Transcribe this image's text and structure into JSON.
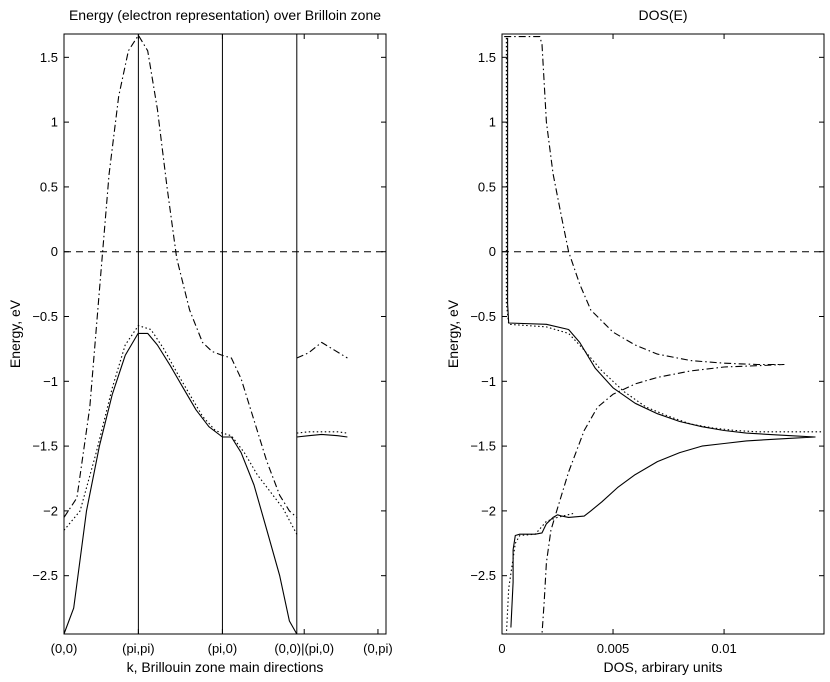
{
  "chart_data": [
    {
      "type": "line",
      "title": "Energy (electron representation) over Brilloin zone",
      "xlabel": "k, Brillouin zone main directions",
      "ylabel": "Energy, eV",
      "xlim": [
        0,
        1
      ],
      "ylim": [
        -2.95,
        1.68
      ],
      "yticks": [
        1.5,
        1,
        0.5,
        0,
        -0.5,
        -1,
        -1.5,
        -2,
        -2.5
      ],
      "ytick_labels": [
        "1.5",
        "1",
        "0.5",
        "0",
        "−0.5",
        "−1",
        "−1.5",
        "−2",
        "−2.5"
      ],
      "xticks": [
        0,
        0.231,
        0.492,
        0.746,
        0.975
      ],
      "xtick_labels": [
        "(0,0)",
        "(pi,pi)",
        "(pi,0)",
        "(0,0)|(pi,0)",
        "(0,pi)"
      ],
      "vlines": [
        0.231,
        0.492,
        0.723
      ],
      "hline": {
        "y": 0,
        "style": "dashed"
      },
      "series": [
        {
          "name": "band-solid",
          "style": "solid",
          "segments": [
            [
              [
                0,
                -2.95
              ],
              [
                0.03,
                -2.75
              ],
              [
                0.07,
                -2.0
              ],
              [
                0.11,
                -1.5
              ],
              [
                0.15,
                -1.1
              ],
              [
                0.19,
                -0.8
              ],
              [
                0.23,
                -0.63
              ],
              [
                0.26,
                -0.63
              ],
              [
                0.29,
                -0.72
              ],
              [
                0.33,
                -0.88
              ],
              [
                0.37,
                -1.05
              ],
              [
                0.41,
                -1.22
              ],
              [
                0.45,
                -1.35
              ],
              [
                0.492,
                -1.43
              ],
              [
                0.52,
                -1.43
              ],
              [
                0.55,
                -1.55
              ],
              [
                0.59,
                -1.8
              ],
              [
                0.63,
                -2.15
              ],
              [
                0.67,
                -2.5
              ],
              [
                0.7,
                -2.85
              ],
              [
                0.723,
                -2.95
              ]
            ],
            [
              [
                0.723,
                -1.43
              ],
              [
                0.76,
                -1.42
              ],
              [
                0.8,
                -1.41
              ],
              [
                0.85,
                -1.42
              ],
              [
                0.88,
                -1.43
              ]
            ]
          ]
        },
        {
          "name": "band-dotted",
          "style": "dotted",
          "segments": [
            [
              [
                0,
                -2.15
              ],
              [
                0.05,
                -2.0
              ],
              [
                0.1,
                -1.55
              ],
              [
                0.15,
                -1.05
              ],
              [
                0.19,
                -0.72
              ],
              [
                0.231,
                -0.57
              ],
              [
                0.27,
                -0.6
              ],
              [
                0.31,
                -0.75
              ],
              [
                0.35,
                -0.93
              ],
              [
                0.39,
                -1.1
              ],
              [
                0.43,
                -1.27
              ],
              [
                0.47,
                -1.38
              ],
              [
                0.492,
                -1.4
              ],
              [
                0.52,
                -1.42
              ],
              [
                0.56,
                -1.55
              ],
              [
                0.6,
                -1.72
              ],
              [
                0.64,
                -1.85
              ],
              [
                0.68,
                -1.98
              ],
              [
                0.71,
                -2.12
              ],
              [
                0.723,
                -2.18
              ]
            ],
            [
              [
                0.723,
                -1.4
              ],
              [
                0.76,
                -1.39
              ],
              [
                0.8,
                -1.39
              ],
              [
                0.85,
                -1.39
              ],
              [
                0.88,
                -1.4
              ]
            ]
          ]
        },
        {
          "name": "band-dashdot",
          "style": "dashdot",
          "segments": [
            [
              [
                0,
                -2.05
              ],
              [
                0.04,
                -1.9
              ],
              [
                0.08,
                -1.2
              ],
              [
                0.11,
                -0.3
              ],
              [
                0.14,
                0.6
              ],
              [
                0.17,
                1.2
              ],
              [
                0.2,
                1.55
              ],
              [
                0.231,
                1.67
              ],
              [
                0.26,
                1.55
              ],
              [
                0.29,
                1.1
              ],
              [
                0.32,
                0.5
              ],
              [
                0.35,
                -0.05
              ],
              [
                0.39,
                -0.45
              ],
              [
                0.43,
                -0.7
              ],
              [
                0.46,
                -0.77
              ],
              [
                0.492,
                -0.8
              ],
              [
                0.52,
                -0.82
              ],
              [
                0.55,
                -0.98
              ],
              [
                0.59,
                -1.3
              ],
              [
                0.63,
                -1.62
              ],
              [
                0.67,
                -1.88
              ],
              [
                0.7,
                -2.0
              ],
              [
                0.723,
                -2.05
              ]
            ],
            [
              [
                0.723,
                -0.82
              ],
              [
                0.76,
                -0.78
              ],
              [
                0.8,
                -0.7
              ],
              [
                0.84,
                -0.76
              ],
              [
                0.88,
                -0.82
              ]
            ]
          ]
        }
      ]
    },
    {
      "type": "line",
      "title": "DOS(E)",
      "xlabel": "DOS, arbirary units",
      "ylabel": "Energy, eV",
      "xlim": [
        0,
        0.0145
      ],
      "ylim": [
        -2.95,
        1.68
      ],
      "yticks": [
        1.5,
        1,
        0.5,
        0,
        -0.5,
        -1,
        -1.5,
        -2,
        -2.5
      ],
      "ytick_labels": [
        "1.5",
        "1",
        "0.5",
        "0",
        "−0.5",
        "−1",
        "−1.5",
        "−2",
        "−2.5"
      ],
      "xticks": [
        0,
        0.005,
        0.01
      ],
      "xtick_labels": [
        "0",
        "0.005",
        "0.01"
      ],
      "hline": {
        "y": 0,
        "style": "dashed"
      },
      "series": [
        {
          "name": "dos-solid",
          "style": "solid",
          "segments": [
            [
              [
                0.00025,
                1.65
              ],
              [
                0.00025,
                -0.4
              ],
              [
                0.0003,
                -0.55
              ],
              [
                0.002,
                -0.56
              ],
              [
                0.003,
                -0.6
              ],
              [
                0.0035,
                -0.7
              ],
              [
                0.0042,
                -0.9
              ],
              [
                0.005,
                -1.05
              ],
              [
                0.006,
                -1.17
              ],
              [
                0.007,
                -1.25
              ],
              [
                0.008,
                -1.31
              ],
              [
                0.009,
                -1.35
              ],
              [
                0.01,
                -1.38
              ],
              [
                0.011,
                -1.4
              ],
              [
                0.012,
                -1.41
              ],
              [
                0.013,
                -1.42
              ],
              [
                0.0141,
                -1.43
              ],
              [
                0.013,
                -1.44
              ],
              [
                0.012,
                -1.45
              ],
              [
                0.011,
                -1.46
              ],
              [
                0.01,
                -1.48
              ],
              [
                0.009,
                -1.5
              ],
              [
                0.008,
                -1.55
              ],
              [
                0.007,
                -1.62
              ],
              [
                0.006,
                -1.72
              ],
              [
                0.0052,
                -1.82
              ],
              [
                0.0045,
                -1.93
              ],
              [
                0.004,
                -2.0
              ],
              [
                0.0037,
                -2.04
              ],
              [
                0.003,
                -2.05
              ],
              [
                0.0027,
                -2.04
              ],
              [
                0.0025,
                -2.03
              ],
              [
                0.0023,
                -2.05
              ],
              [
                0.002,
                -2.1
              ],
              [
                0.0018,
                -2.17
              ],
              [
                0.0015,
                -2.18
              ],
              [
                0.0008,
                -2.18
              ],
              [
                0.0006,
                -2.19
              ],
              [
                0.0005,
                -2.3
              ],
              [
                0.0005,
                -2.55
              ],
              [
                0.0004,
                -2.9
              ]
            ]
          ]
        },
        {
          "name": "dos-dotted",
          "style": "dotted",
          "segments": [
            [
              [
                0.0002,
                1.65
              ],
              [
                0.0002,
                -0.4
              ],
              [
                0.0003,
                -0.56
              ],
              [
                0.002,
                -0.58
              ],
              [
                0.003,
                -0.63
              ],
              [
                0.0036,
                -0.74
              ],
              [
                0.0045,
                -0.92
              ],
              [
                0.0055,
                -1.08
              ],
              [
                0.0065,
                -1.2
              ],
              [
                0.0075,
                -1.27
              ],
              [
                0.0085,
                -1.33
              ],
              [
                0.0095,
                -1.36
              ],
              [
                0.0105,
                -1.38
              ],
              [
                0.0115,
                -1.39
              ],
              [
                0.013,
                -1.39
              ],
              [
                0.0145,
                -1.39
              ]
            ],
            [
              [
                0.0032,
                -2.02
              ],
              [
                0.0025,
                -2.05
              ],
              [
                0.002,
                -2.08
              ],
              [
                0.0015,
                -2.18
              ],
              [
                0.0008,
                -2.19
              ],
              [
                0.0006,
                -2.25
              ],
              [
                0.0003,
                -2.6
              ],
              [
                0.0002,
                -2.95
              ]
            ]
          ]
        },
        {
          "name": "dos-dashdot",
          "style": "dashdot",
          "segments": [
            [
              [
                0.0001,
                1.66
              ],
              [
                0.0017,
                1.66
              ],
              [
                0.0018,
                1.6
              ],
              [
                0.0019,
                1.3
              ],
              [
                0.002,
                1.0
              ],
              [
                0.0023,
                0.6
              ],
              [
                0.0027,
                0.25
              ],
              [
                0.003,
                0.0
              ],
              [
                0.0035,
                -0.25
              ],
              [
                0.004,
                -0.45
              ],
              [
                0.005,
                -0.62
              ],
              [
                0.006,
                -0.72
              ],
              [
                0.007,
                -0.79
              ],
              [
                0.0085,
                -0.84
              ],
              [
                0.01,
                -0.86
              ],
              [
                0.0115,
                -0.87
              ],
              [
                0.0127,
                -0.87
              ],
              [
                0.0115,
                -0.88
              ],
              [
                0.01,
                -0.89
              ],
              [
                0.0085,
                -0.92
              ],
              [
                0.007,
                -0.97
              ],
              [
                0.006,
                -1.02
              ],
              [
                0.005,
                -1.1
              ],
              [
                0.0043,
                -1.2
              ],
              [
                0.0037,
                -1.38
              ],
              [
                0.003,
                -1.7
              ],
              [
                0.0025,
                -1.98
              ],
              [
                0.0022,
                -2.15
              ],
              [
                0.002,
                -2.4
              ],
              [
                0.0019,
                -2.7
              ],
              [
                0.0018,
                -2.95
              ]
            ]
          ]
        }
      ]
    }
  ]
}
